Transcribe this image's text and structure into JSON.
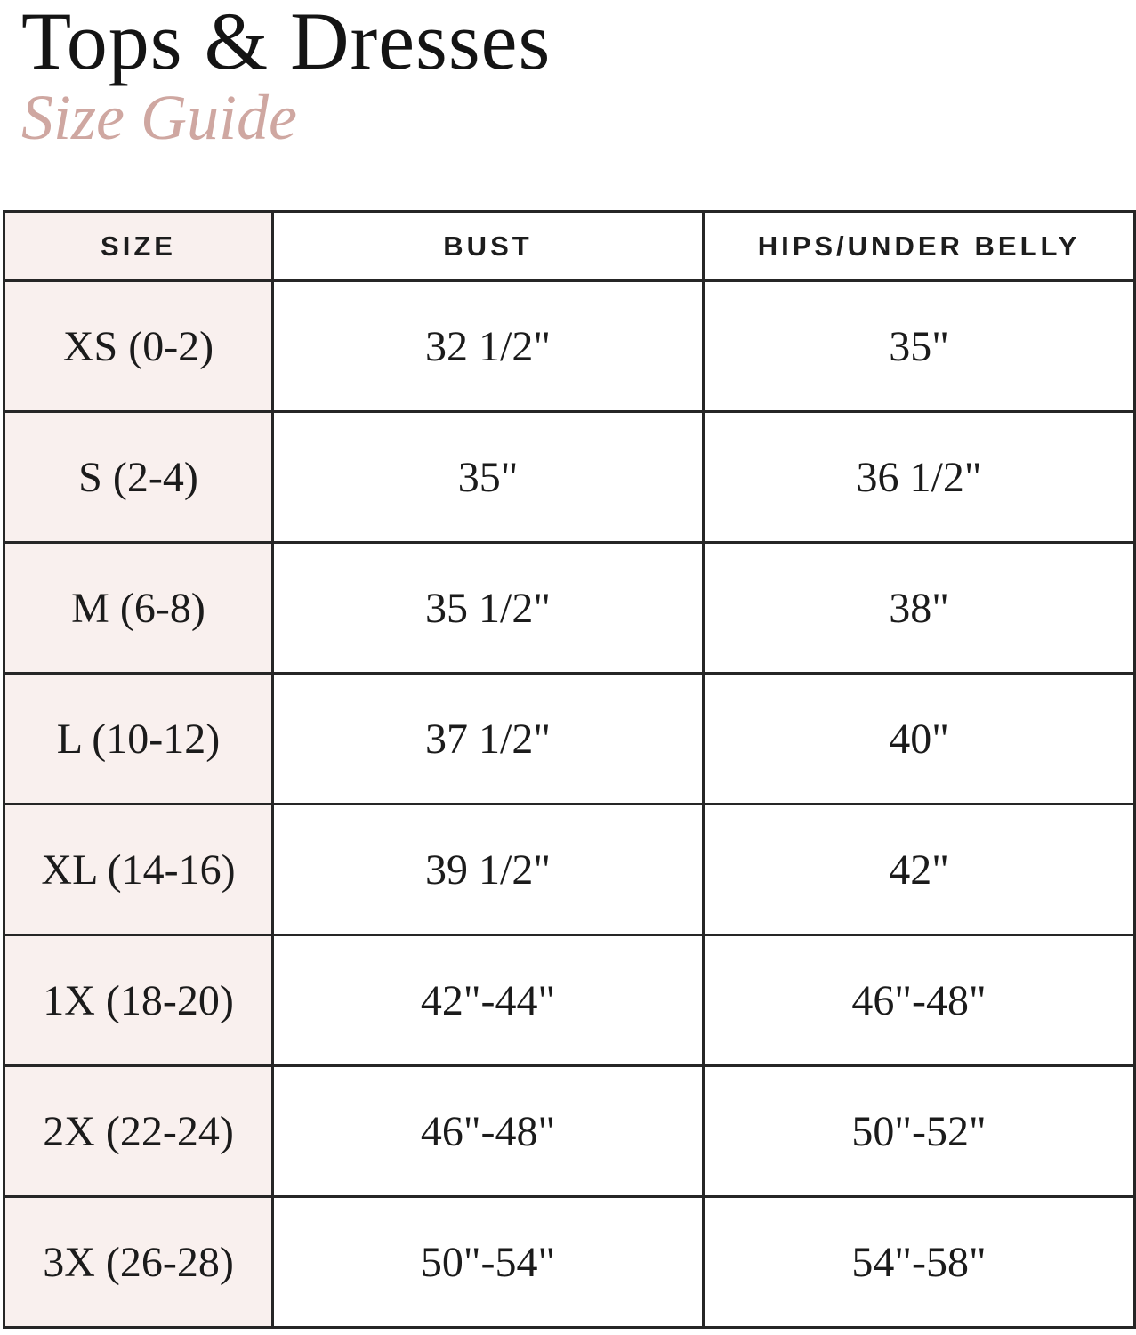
{
  "header": {
    "title": "Tops & Dresses",
    "subtitle": "Size Guide"
  },
  "table": {
    "columns": [
      {
        "label": "SIZE"
      },
      {
        "label": "BUST"
      },
      {
        "label": "HIPS/UNDER BELLY"
      }
    ],
    "rows": [
      {
        "size": "XS (0-2)",
        "bust": "32 1/2\"",
        "hips": "35\""
      },
      {
        "size": "S (2-4)",
        "bust": "35\"",
        "hips": "36 1/2\""
      },
      {
        "size": "M (6-8)",
        "bust": "35 1/2\"",
        "hips": "38\""
      },
      {
        "size": "L (10-12)",
        "bust": "37 1/2\"",
        "hips": "40\""
      },
      {
        "size": "XL (14-16)",
        "bust": "39 1/2\"",
        "hips": "42\""
      },
      {
        "size": "1X (18-20)",
        "bust": "42\"-44\"",
        "hips": "46\"-48\""
      },
      {
        "size": "2X (22-24)",
        "bust": "46\"-48\"",
        "hips": "50\"-52\""
      },
      {
        "size": "3X (26-28)",
        "bust": "50\"-54\"",
        "hips": "54\"-58\""
      }
    ]
  },
  "colors": {
    "size_column_background": "#f9f0ee",
    "subtitle_rose": "#cfa7a1",
    "table_border": "#262626",
    "text": "#1b1b1b",
    "page_background": "#ffffff"
  }
}
